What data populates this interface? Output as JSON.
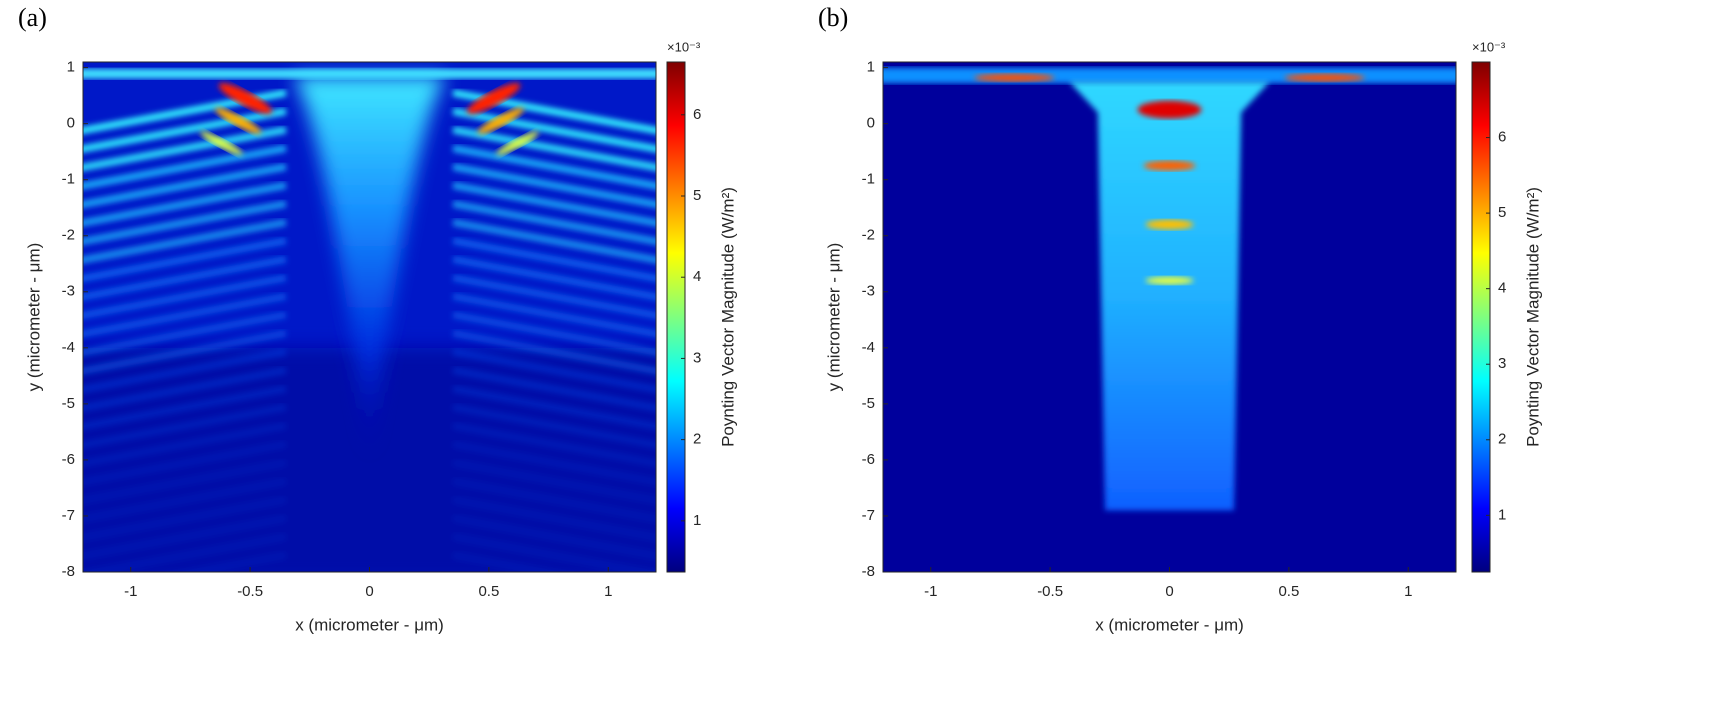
{
  "chart_data": [
    {
      "type": "heatmap",
      "panel_label": "(a)",
      "xlabel": "x (micrometer - μm)",
      "ylabel": "y (micrometer - μm)",
      "colorbar_label": "Poynting Vector Magnitude (W/m²)",
      "colorbar_exponent": "×10⁻³",
      "xlim": [
        -1.2,
        1.2
      ],
      "ylim": [
        -8,
        1.1
      ],
      "xticks": [
        -1,
        -0.5,
        0,
        0.5,
        1
      ],
      "yticks": [
        1,
        0,
        -1,
        -2,
        -3,
        -4,
        -5,
        -6,
        -7,
        -8
      ],
      "clim": [
        0.37,
        6.65
      ],
      "cticks": [
        1,
        2,
        3,
        4,
        5,
        6
      ],
      "colormap": "jet",
      "pattern": "fringes"
    },
    {
      "type": "heatmap",
      "panel_label": "(b)",
      "xlabel": "x (micrometer - μm)",
      "ylabel": "y (micrometer - μm)",
      "colorbar_label": "Poynting Vector Magnitude (W/m²)",
      "colorbar_exponent": "×10⁻³",
      "xlim": [
        -1.2,
        1.2
      ],
      "ylim": [
        -8,
        1.1
      ],
      "xticks": [
        -1,
        -0.5,
        0,
        0.5,
        1
      ],
      "yticks": [
        1,
        0,
        -1,
        -2,
        -3,
        -4,
        -5,
        -6,
        -7,
        -8
      ],
      "clim": [
        0.25,
        7.0
      ],
      "cticks": [
        1,
        2,
        3,
        4,
        5,
        6
      ],
      "colormap": "jet",
      "pattern": "column"
    }
  ]
}
